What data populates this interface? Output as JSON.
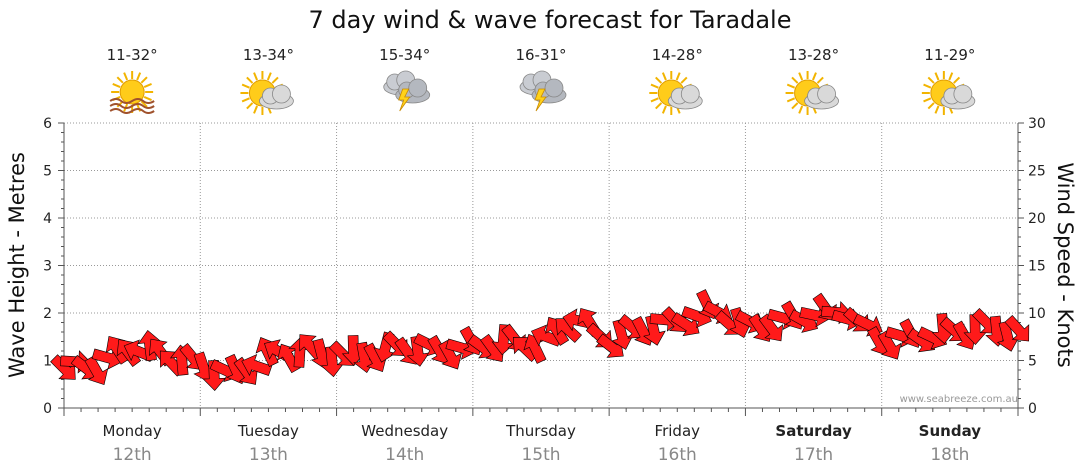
{
  "chart_data": {
    "type": "line",
    "title": "7 day wind & wave forecast for Taradale",
    "ylabel_left": "Wave Height - Metres",
    "ylabel_right": "Wind Speed - Knots",
    "ylim_left": [
      0,
      6
    ],
    "ylim_right": [
      0,
      30
    ],
    "yticks_left": [
      "0",
      "1",
      "2",
      "3",
      "4",
      "5",
      "6"
    ],
    "yticks_right": [
      "0",
      "5",
      "10",
      "15",
      "20",
      "25",
      "30"
    ],
    "grid": true,
    "days": [
      {
        "name": "Monday",
        "date": "12th",
        "temp": "11-32°",
        "icon": "hot-sun-icon",
        "bold": false
      },
      {
        "name": "Tuesday",
        "date": "13th",
        "temp": "13-34°",
        "icon": "sun-cloud-icon",
        "bold": false
      },
      {
        "name": "Wednesday",
        "date": "14th",
        "temp": "15-34°",
        "icon": "storm-cloud-icon",
        "bold": false
      },
      {
        "name": "Thursday",
        "date": "15th",
        "temp": "16-31°",
        "icon": "storm-cloud-icon",
        "bold": false
      },
      {
        "name": "Friday",
        "date": "16th",
        "temp": "14-28°",
        "icon": "sun-cloud-icon",
        "bold": false
      },
      {
        "name": "Saturday",
        "date": "17th",
        "temp": "13-28°",
        "icon": "sun-cloud-icon",
        "bold": true
      },
      {
        "name": "Sunday",
        "date": "18th",
        "temp": "11-29°",
        "icon": "sun-cloud-icon",
        "bold": true
      }
    ],
    "series": [
      {
        "name": "Wind Speed",
        "units": "knots",
        "color": "#ff1a1a",
        "x_days": [
          0.0,
          0.25,
          0.5,
          0.75,
          1.0,
          1.25,
          1.5,
          1.75,
          2.0,
          2.25,
          2.5,
          2.75,
          3.0,
          3.25,
          3.5,
          3.75,
          4.0,
          4.25,
          4.5,
          4.75,
          5.0,
          5.25,
          5.5,
          5.75,
          6.0,
          6.25,
          6.5,
          6.75,
          7.0
        ],
        "values": [
          4.2,
          4.5,
          6.5,
          5.5,
          4.5,
          3.5,
          5.5,
          6.0,
          5.5,
          5.7,
          6.5,
          6.0,
          6.5,
          7.0,
          6.5,
          9.5,
          7.0,
          8.5,
          9.0,
          10.5,
          8.5,
          9.0,
          10.0,
          10.0,
          7.0,
          7.5,
          8.0,
          8.5,
          8.0
        ],
        "directions_deg": [
          200,
          220,
          45,
          60,
          250,
          230,
          40,
          70,
          250,
          260,
          240,
          230,
          220,
          250,
          45,
          35,
          230,
          240,
          210,
          220,
          230,
          220,
          210,
          200,
          230,
          220,
          240,
          250,
          250
        ]
      }
    ]
  },
  "watermark": "www.seabreeze.com.au"
}
